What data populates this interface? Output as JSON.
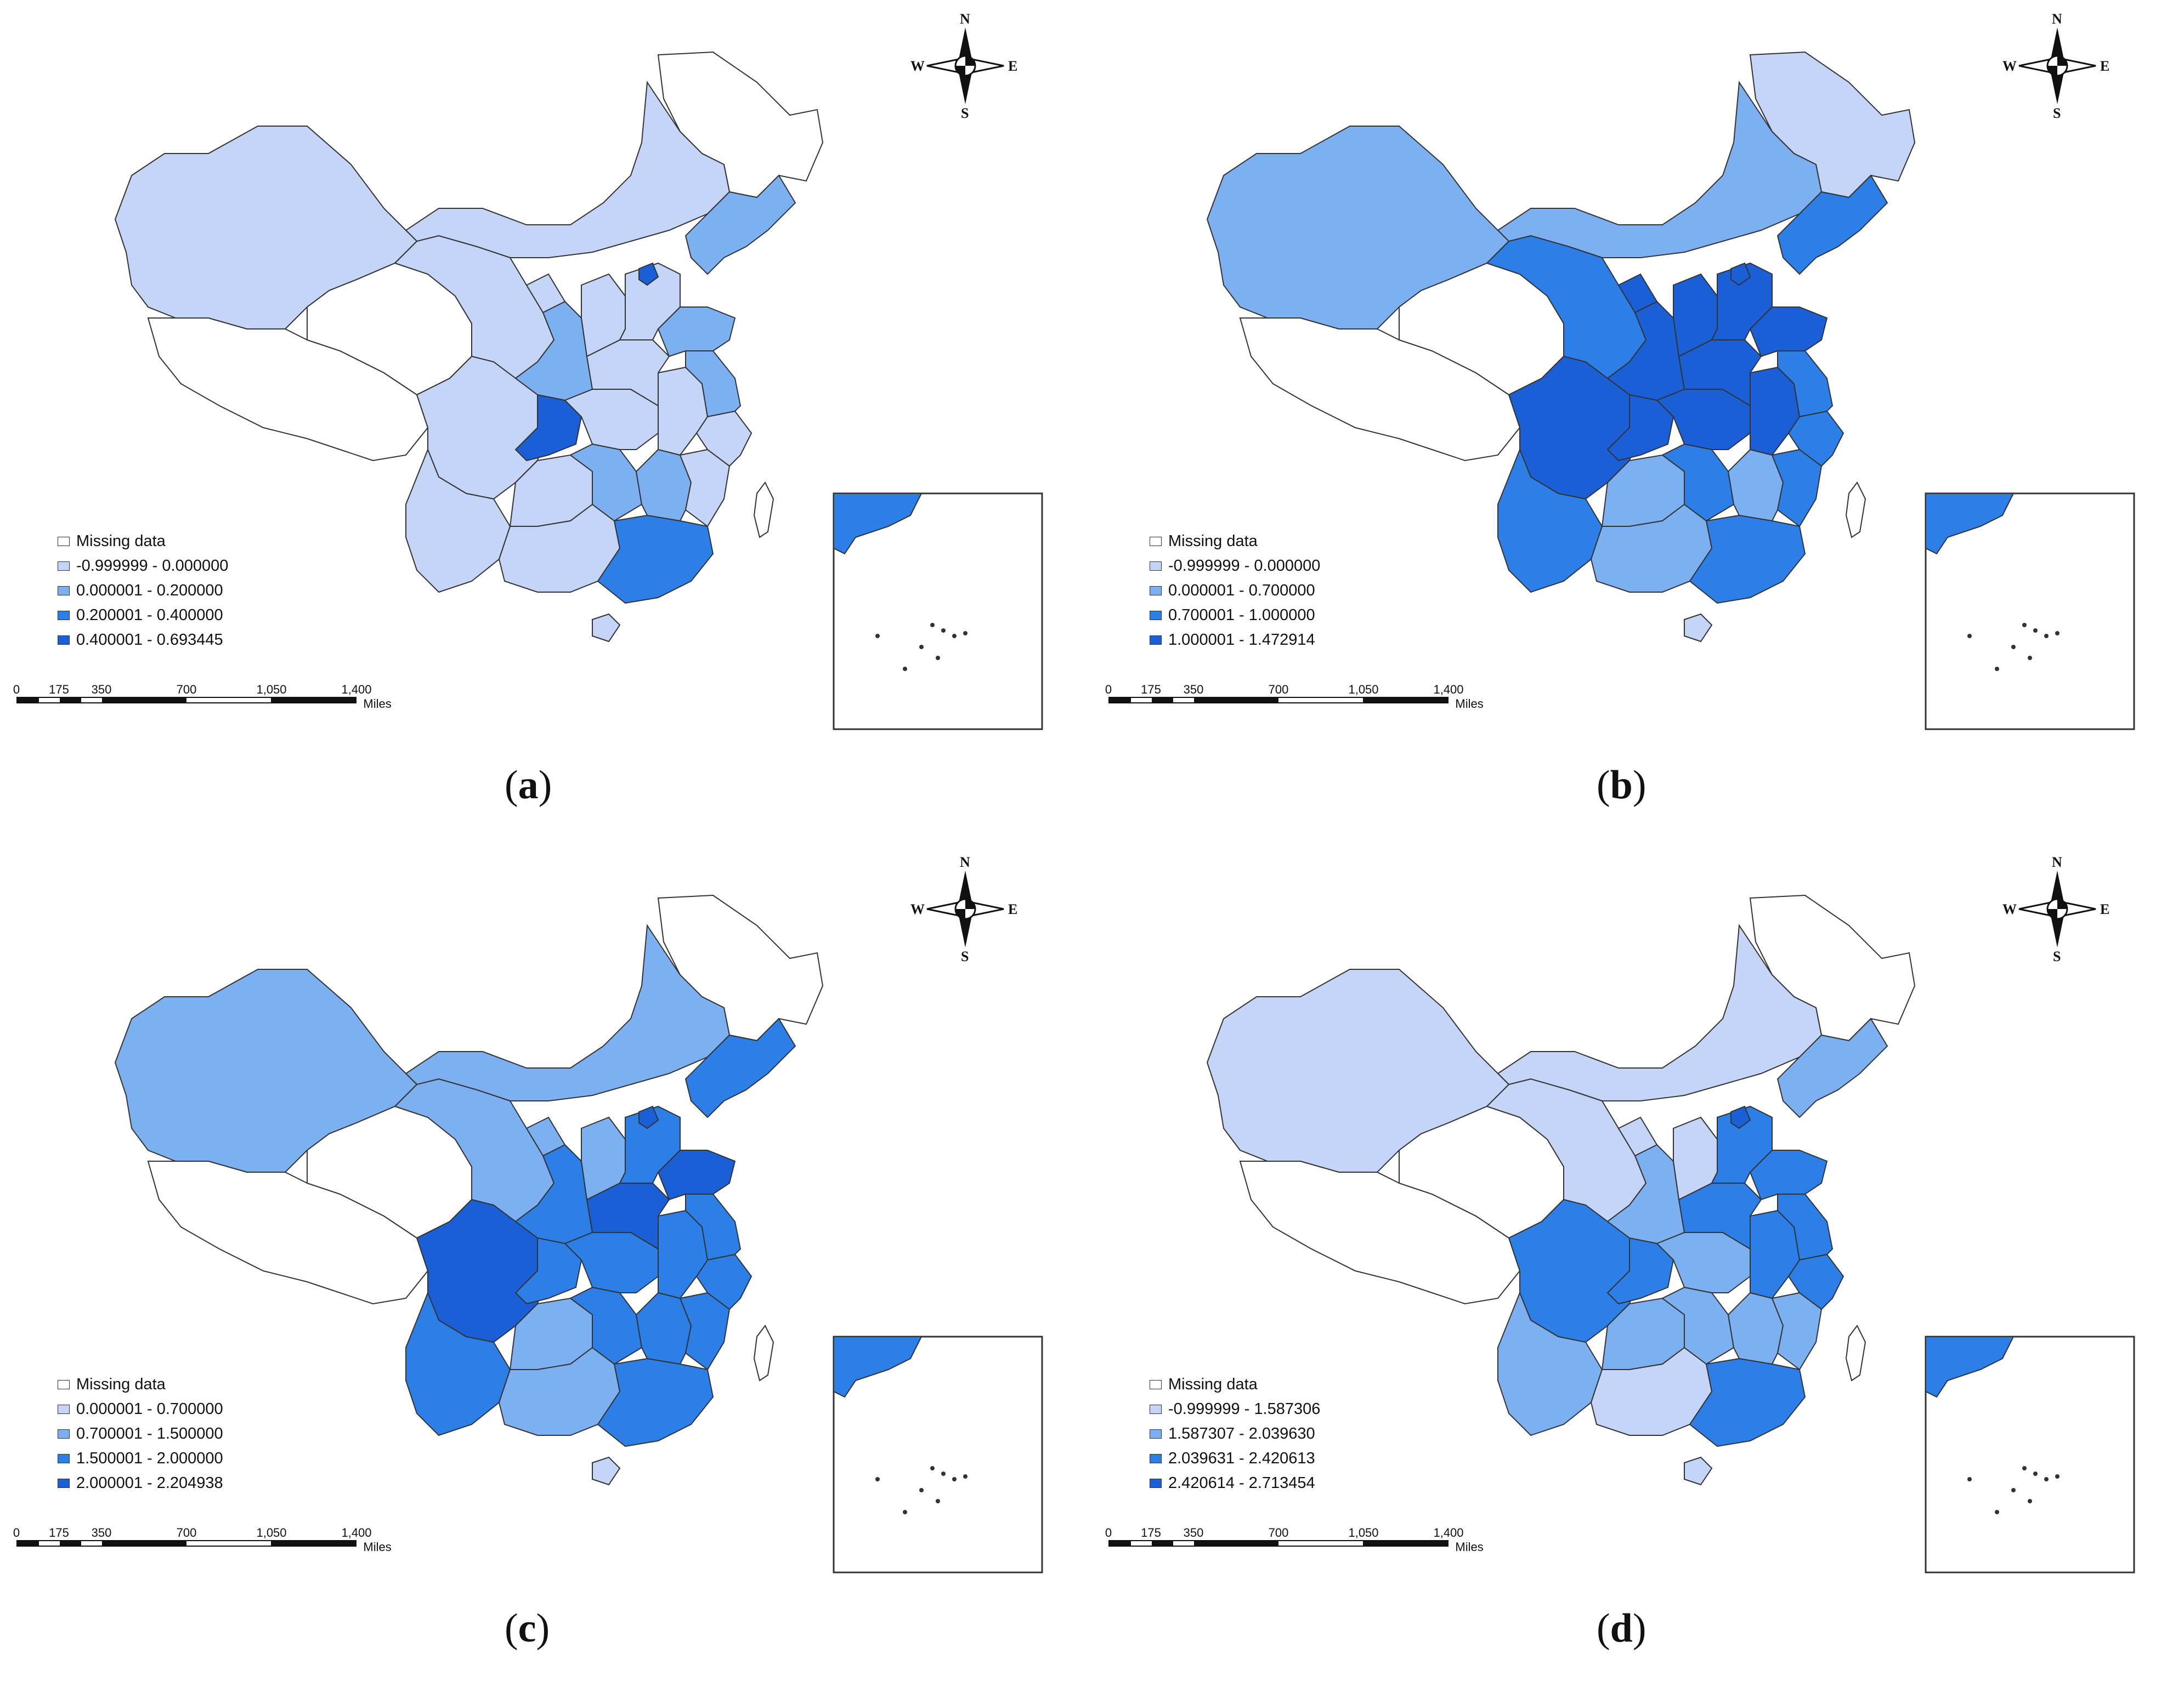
{
  "panels": [
    {
      "id": "a",
      "caption": "a",
      "compass": {
        "n": "N",
        "s": "S",
        "e": "E",
        "w": "W"
      },
      "legend": [
        {
          "label": "Missing data",
          "color": "#ffffff"
        },
        {
          "label": "-0.999999 - 0.000000",
          "color": "#c4d5f7"
        },
        {
          "label": "0.000001 - 0.200000",
          "color": "#7db0f0"
        },
        {
          "label": "0.200001 - 0.400000",
          "color": "#2c7fe6"
        },
        {
          "label": "0.400001 - 0.693445",
          "color": "#1a5fd6"
        }
      ],
      "scale": {
        "ticks": [
          "0",
          "175",
          "350",
          "700",
          "1,050",
          "1,400"
        ],
        "unit": "Miles"
      }
    },
    {
      "id": "b",
      "caption": "b",
      "compass": {
        "n": "N",
        "s": "S",
        "e": "E",
        "w": "W"
      },
      "legend": [
        {
          "label": "Missing data",
          "color": "#ffffff"
        },
        {
          "label": "-0.999999 - 0.000000",
          "color": "#c4d5f7"
        },
        {
          "label": "0.000001 - 0.700000",
          "color": "#7db0f0"
        },
        {
          "label": "0.700001 - 1.000000",
          "color": "#2c7fe6"
        },
        {
          "label": "1.000001 - 1.472914",
          "color": "#1a5fd6"
        }
      ],
      "scale": {
        "ticks": [
          "0",
          "175",
          "350",
          "700",
          "1,050",
          "1,400"
        ],
        "unit": "Miles"
      }
    },
    {
      "id": "c",
      "caption": "c",
      "compass": {
        "n": "N",
        "s": "S",
        "e": "E",
        "w": "W"
      },
      "legend": [
        {
          "label": "Missing data",
          "color": "#ffffff"
        },
        {
          "label": "0.000001 - 0.700000",
          "color": "#c4d5f7"
        },
        {
          "label": "0.700001 - 1.500000",
          "color": "#7db0f0"
        },
        {
          "label": "1.500001 - 2.000000",
          "color": "#2c7fe6"
        },
        {
          "label": "2.000001 - 2.204938",
          "color": "#1a5fd6"
        }
      ],
      "scale": {
        "ticks": [
          "0",
          "175",
          "350",
          "700",
          "1,050",
          "1,400"
        ],
        "unit": "Miles"
      }
    },
    {
      "id": "d",
      "caption": "d",
      "compass": {
        "n": "N",
        "s": "S",
        "e": "E",
        "w": "W"
      },
      "legend": [
        {
          "label": "Missing data",
          "color": "#ffffff"
        },
        {
          "label": "-0.999999 - 1.587306",
          "color": "#c4d5f7"
        },
        {
          "label": "1.587307 - 2.039630",
          "color": "#7db0f0"
        },
        {
          "label": "2.039631 - 2.420613",
          "color": "#2c7fe6"
        },
        {
          "label": "2.420614 - 2.713454",
          "color": "#1a5fd6"
        }
      ],
      "scale": {
        "ticks": [
          "0",
          "175",
          "350",
          "700",
          "1,050",
          "1,400"
        ],
        "unit": "Miles"
      }
    }
  ]
}
